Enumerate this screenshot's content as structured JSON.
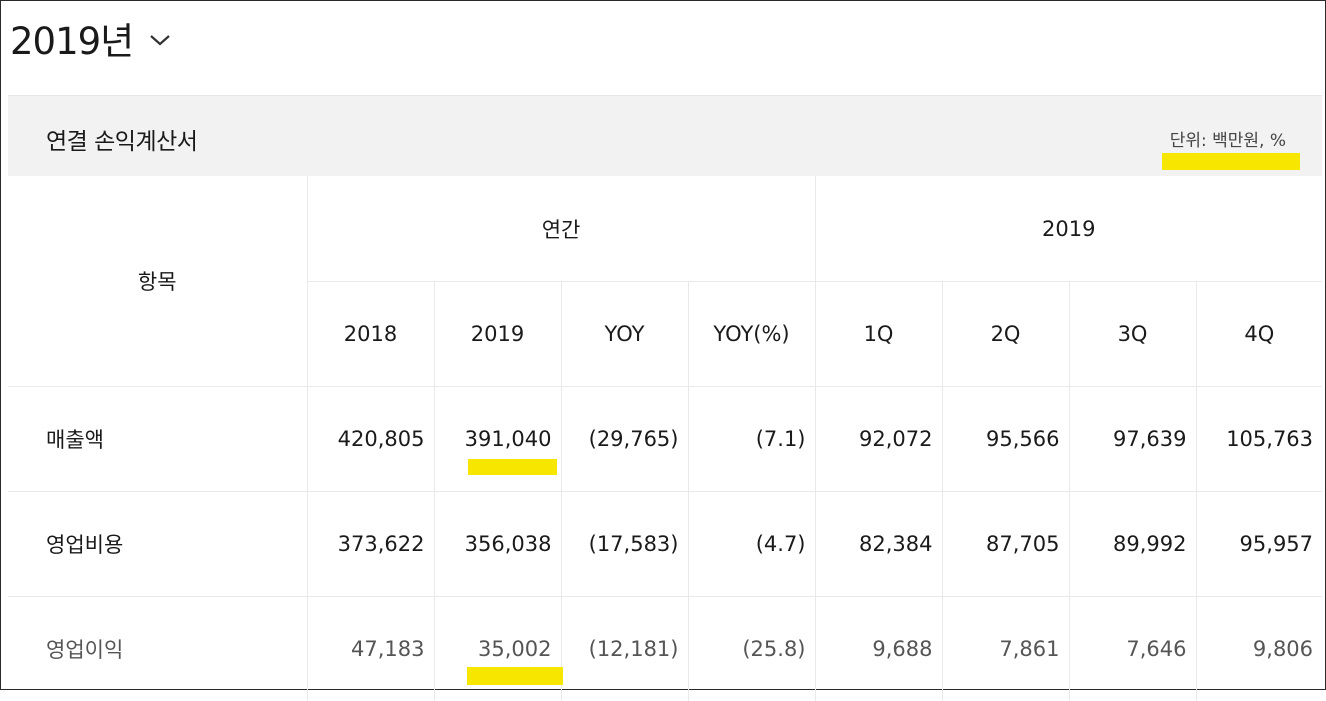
{
  "year_selector": {
    "label": "2019년",
    "icon": "chevron-down-icon"
  },
  "panel": {
    "title": "연결 손익계산서",
    "unit": "단위: 백만원, %"
  },
  "highlight_color": "#f7e600",
  "headers": {
    "item": "항목",
    "annual_group": "연간",
    "quarter_group": "2019",
    "columns": [
      "2018",
      "2019",
      "YOY",
      "YOY(%)",
      "1Q",
      "2Q",
      "3Q",
      "4Q"
    ]
  },
  "rows": [
    {
      "label": "매출액",
      "values": [
        "420,805",
        "391,040",
        "(29,765)",
        "(7.1)",
        "92,072",
        "95,566",
        "97,639",
        "105,763"
      ]
    },
    {
      "label": "영업비용",
      "values": [
        "373,622",
        "356,038",
        "(17,583)",
        "(4.7)",
        "82,384",
        "87,705",
        "89,992",
        "95,957"
      ]
    },
    {
      "label": "영업이익",
      "values": [
        "47,183",
        "35,002",
        "(12,181)",
        "(25.8)",
        "9,688",
        "7,861",
        "7,646",
        "9,806"
      ]
    }
  ]
}
